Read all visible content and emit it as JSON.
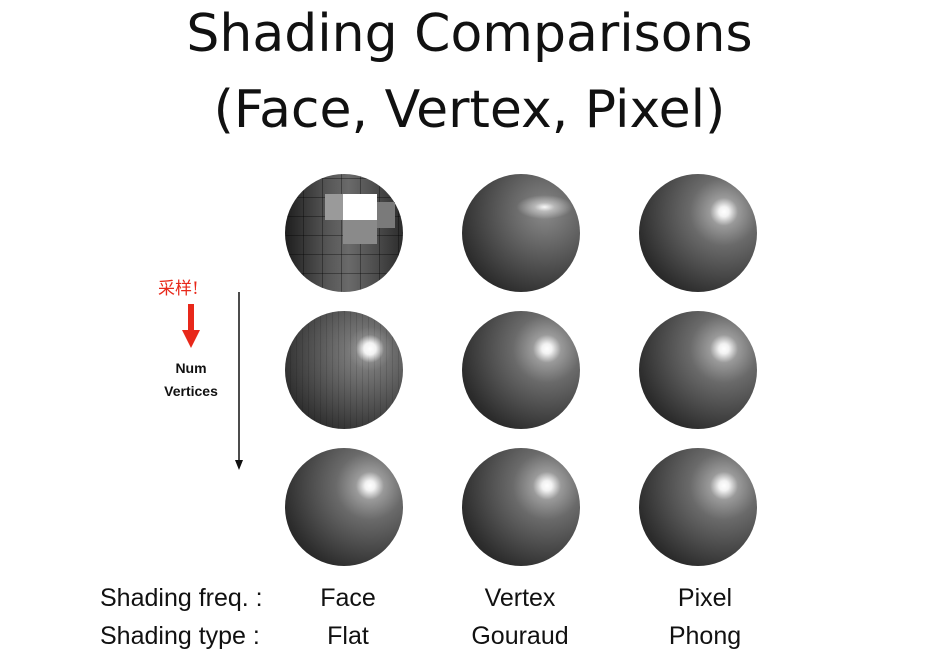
{
  "title": {
    "line1": "Shading Comparisons",
    "line2": "(Face, Vertex, Pixel)"
  },
  "side_annotation": {
    "sampling": "采样!",
    "num": "Num",
    "vertices": "Vertices",
    "accent_color": "#e8281a"
  },
  "grid": {
    "columns": [
      "Face",
      "Vertex",
      "Pixel"
    ],
    "rows": 3,
    "cells": [
      {
        "col": "Face",
        "row": 1,
        "style": "flat-coarse"
      },
      {
        "col": "Vertex",
        "row": 1,
        "style": "gouraud-coarse"
      },
      {
        "col": "Pixel",
        "row": 1,
        "style": "phong"
      },
      {
        "col": "Face",
        "row": 2,
        "style": "flat-fine"
      },
      {
        "col": "Vertex",
        "row": 2,
        "style": "phong"
      },
      {
        "col": "Pixel",
        "row": 2,
        "style": "phong"
      },
      {
        "col": "Face",
        "row": 3,
        "style": "phong"
      },
      {
        "col": "Vertex",
        "row": 3,
        "style": "phong"
      },
      {
        "col": "Pixel",
        "row": 3,
        "style": "phong"
      }
    ]
  },
  "footer": {
    "freq_label": "Shading freq. :",
    "type_label": "Shading type :",
    "freq": [
      "Face",
      "Vertex",
      "Pixel"
    ],
    "type": [
      "Flat",
      "Gouraud",
      "Phong"
    ]
  }
}
